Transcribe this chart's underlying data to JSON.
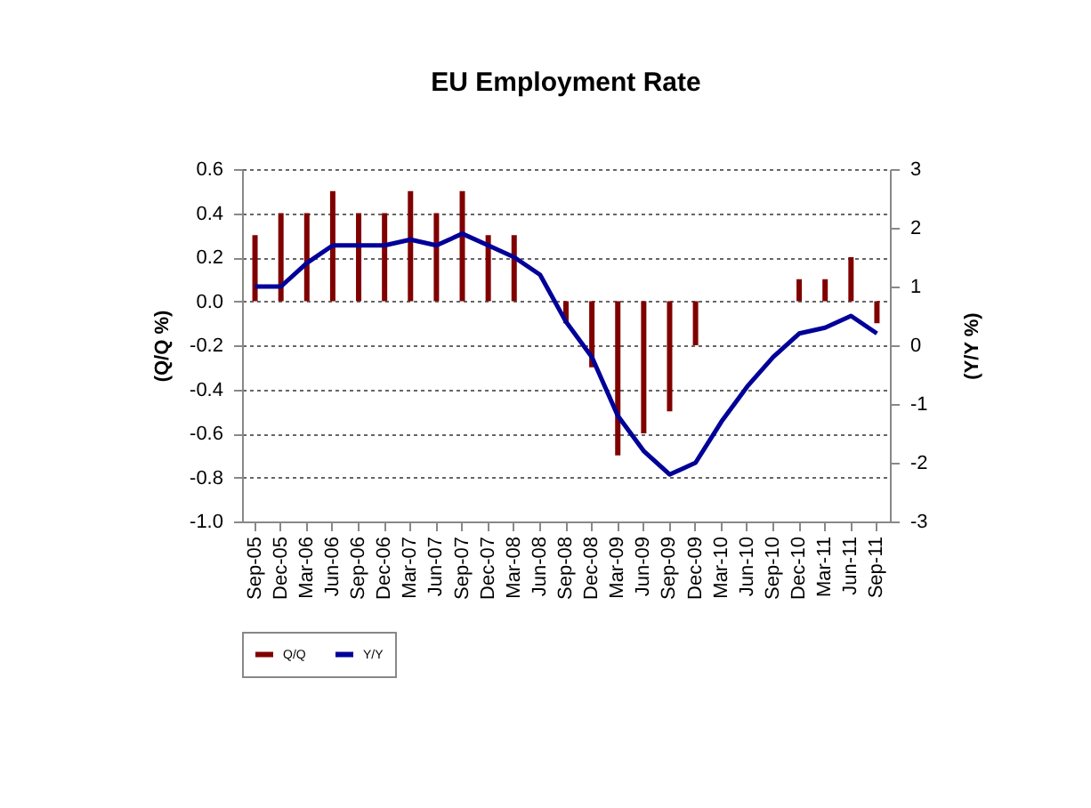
{
  "chart_data": {
    "type": "bar",
    "title": "EU Employment Rate",
    "ylabel": "(Q/Q %)",
    "y2label": "(Y/Y %)",
    "categories": [
      "Sep-05",
      "Dec-05",
      "Mar-06",
      "Jun-06",
      "Sep-06",
      "Dec-06",
      "Mar-07",
      "Jun-07",
      "Sep-07",
      "Dec-07",
      "Mar-08",
      "Jun-08",
      "Sep-08",
      "Dec-08",
      "Mar-09",
      "Jun-09",
      "Sep-09",
      "Dec-09",
      "Mar-10",
      "Jun-10",
      "Sep-10",
      "Dec-10",
      "Mar-11",
      "Jun-11",
      "Sep-11"
    ],
    "series": [
      {
        "name": "Q/Q",
        "color": "#800000",
        "values": [
          0.3,
          0.4,
          0.4,
          0.5,
          0.4,
          0.4,
          0.5,
          0.4,
          0.5,
          0.3,
          0.3,
          0,
          -0.1,
          -0.3,
          -0.7,
          -0.6,
          -0.5,
          -0.2,
          0,
          0,
          0,
          0.1,
          0.1,
          0.2,
          -0.1
        ]
      },
      {
        "name": "Y/Y",
        "type": "line",
        "axis": "y2",
        "color": "#000099",
        "values": [
          1.0,
          1.0,
          1.4,
          1.7,
          1.7,
          1.7,
          1.8,
          1.7,
          1.9,
          1.7,
          1.5,
          1.2,
          0.4,
          -0.2,
          -1.2,
          -1.8,
          -2.2,
          -2.0,
          -1.3,
          -0.7,
          -0.2,
          0.2,
          0.3,
          0.5,
          0.2
        ]
      }
    ],
    "ylim": [
      -1.0,
      0.6
    ],
    "yticks": [
      {
        "value": -1.0,
        "label": "-1.0"
      },
      -0.8,
      -0.6,
      -0.4,
      -0.2,
      {
        "value": 0,
        "label": "0.0"
      },
      0.2,
      0.4,
      0.6
    ],
    "y2lim": [
      -3,
      3
    ],
    "y2ticks": [
      -3,
      -2,
      -1,
      0,
      1,
      2,
      3
    ],
    "grid": "y",
    "legend": "bottom",
    "marker": "none",
    "line_style": "solid"
  }
}
